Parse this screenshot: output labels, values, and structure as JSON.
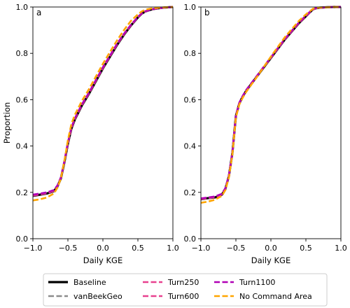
{
  "chart_data": [
    {
      "type": "line",
      "panel_label": "a",
      "xlabel": "Daily KGE",
      "ylabel": "Proportion",
      "xlim": [
        -1.0,
        1.0
      ],
      "ylim": [
        0.0,
        1.0
      ],
      "xticks": [
        "−1.0",
        "−0.5",
        "0.0",
        "0.5",
        "1.0"
      ],
      "yticks": [
        "0.0",
        "0.2",
        "0.4",
        "0.6",
        "0.8",
        "1.0"
      ],
      "grid": false,
      "series": [
        {
          "name": "Baseline",
          "color": "#000000",
          "style": "solid",
          "x": [
            -1.0,
            -0.9,
            -0.8,
            -0.7,
            -0.65,
            -0.6,
            -0.55,
            -0.5,
            -0.45,
            -0.4,
            -0.35,
            -0.3,
            -0.2,
            -0.1,
            0.0,
            0.1,
            0.2,
            0.3,
            0.4,
            0.5,
            0.55,
            0.6,
            0.7,
            0.8,
            0.9,
            1.0
          ],
          "y": [
            0.185,
            0.19,
            0.195,
            0.205,
            0.225,
            0.26,
            0.33,
            0.41,
            0.475,
            0.515,
            0.545,
            0.575,
            0.625,
            0.68,
            0.735,
            0.785,
            0.835,
            0.88,
            0.92,
            0.955,
            0.97,
            0.98,
            0.99,
            0.995,
            0.998,
            1.0
          ]
        },
        {
          "name": "vanBeekGeo",
          "color": "#8c8c8c",
          "style": "dashed",
          "x": [
            -1.0,
            -0.9,
            -0.8,
            -0.7,
            -0.65,
            -0.6,
            -0.55,
            -0.5,
            -0.45,
            -0.4,
            -0.35,
            -0.3,
            -0.2,
            -0.1,
            0.0,
            0.1,
            0.2,
            0.3,
            0.4,
            0.5,
            0.55,
            0.6,
            0.7,
            0.8,
            0.9,
            1.0
          ],
          "y": [
            0.188,
            0.193,
            0.198,
            0.208,
            0.228,
            0.263,
            0.333,
            0.413,
            0.478,
            0.518,
            0.548,
            0.578,
            0.628,
            0.683,
            0.738,
            0.788,
            0.838,
            0.883,
            0.922,
            0.957,
            0.971,
            0.981,
            0.99,
            0.995,
            0.998,
            1.0
          ]
        },
        {
          "name": "Turn250",
          "color": "#e8418f",
          "style": "dashed",
          "x": [
            -1.0,
            -0.9,
            -0.8,
            -0.7,
            -0.65,
            -0.6,
            -0.55,
            -0.5,
            -0.45,
            -0.4,
            -0.35,
            -0.3,
            -0.2,
            -0.1,
            0.0,
            0.1,
            0.2,
            0.3,
            0.4,
            0.5,
            0.55,
            0.6,
            0.7,
            0.8,
            0.9,
            1.0
          ],
          "y": [
            0.186,
            0.191,
            0.196,
            0.206,
            0.227,
            0.262,
            0.332,
            0.412,
            0.477,
            0.517,
            0.547,
            0.577,
            0.627,
            0.682,
            0.737,
            0.787,
            0.837,
            0.882,
            0.921,
            0.956,
            0.97,
            0.98,
            0.99,
            0.995,
            0.998,
            1.0
          ]
        },
        {
          "name": "Turn600",
          "color": "#e8418f",
          "style": "dashed",
          "x": [
            -1.0,
            -0.9,
            -0.8,
            -0.7,
            -0.65,
            -0.6,
            -0.55,
            -0.5,
            -0.45,
            -0.4,
            -0.35,
            -0.3,
            -0.2,
            -0.1,
            0.0,
            0.1,
            0.2,
            0.3,
            0.4,
            0.5,
            0.55,
            0.6,
            0.7,
            0.8,
            0.9,
            1.0
          ],
          "y": [
            0.187,
            0.192,
            0.197,
            0.207,
            0.227,
            0.262,
            0.332,
            0.412,
            0.477,
            0.517,
            0.547,
            0.577,
            0.627,
            0.682,
            0.737,
            0.787,
            0.837,
            0.882,
            0.921,
            0.956,
            0.97,
            0.98,
            0.99,
            0.995,
            0.998,
            1.0
          ]
        },
        {
          "name": "Turn1100",
          "color": "#b000b5",
          "style": "dashed",
          "x": [
            -1.0,
            -0.9,
            -0.8,
            -0.7,
            -0.65,
            -0.6,
            -0.55,
            -0.5,
            -0.45,
            -0.4,
            -0.35,
            -0.3,
            -0.2,
            -0.1,
            0.0,
            0.1,
            0.2,
            0.3,
            0.4,
            0.5,
            0.55,
            0.6,
            0.7,
            0.8,
            0.9,
            1.0
          ],
          "y": [
            0.19,
            0.195,
            0.2,
            0.21,
            0.23,
            0.265,
            0.335,
            0.415,
            0.48,
            0.52,
            0.55,
            0.58,
            0.63,
            0.685,
            0.74,
            0.79,
            0.84,
            0.884,
            0.923,
            0.957,
            0.971,
            0.981,
            0.99,
            0.995,
            0.998,
            1.0
          ]
        },
        {
          "name": "No Command Area",
          "color": "#ffa500",
          "style": "dashed",
          "x": [
            -1.0,
            -0.9,
            -0.8,
            -0.7,
            -0.65,
            -0.6,
            -0.55,
            -0.5,
            -0.45,
            -0.4,
            -0.35,
            -0.3,
            -0.2,
            -0.1,
            0.0,
            0.1,
            0.2,
            0.3,
            0.4,
            0.5,
            0.55,
            0.6,
            0.7,
            0.8,
            0.9,
            1.0
          ],
          "y": [
            0.165,
            0.17,
            0.178,
            0.195,
            0.22,
            0.26,
            0.335,
            0.425,
            0.495,
            0.535,
            0.565,
            0.595,
            0.645,
            0.7,
            0.755,
            0.805,
            0.855,
            0.9,
            0.94,
            0.968,
            0.98,
            0.988,
            0.994,
            0.997,
            0.999,
            1.0
          ]
        }
      ]
    },
    {
      "type": "line",
      "panel_label": "b",
      "xlabel": "Daily KGE",
      "ylabel": "",
      "xlim": [
        -1.0,
        1.0
      ],
      "ylim": [
        0.0,
        1.0
      ],
      "xticks": [
        "−1.0",
        "−0.5",
        "0.0",
        "0.5",
        "1.0"
      ],
      "yticks": [
        "0.0",
        "0.2",
        "0.4",
        "0.6",
        "0.8",
        "1.0"
      ],
      "grid": false,
      "series": [
        {
          "name": "Baseline",
          "color": "#000000",
          "style": "solid",
          "x": [
            -1.0,
            -0.9,
            -0.8,
            -0.7,
            -0.65,
            -0.6,
            -0.55,
            -0.5,
            -0.45,
            -0.4,
            -0.35,
            -0.3,
            -0.2,
            -0.1,
            0.0,
            0.1,
            0.2,
            0.3,
            0.4,
            0.5,
            0.55,
            0.6,
            0.65,
            0.7,
            0.8,
            0.9,
            1.0
          ],
          "y": [
            0.17,
            0.175,
            0.178,
            0.19,
            0.215,
            0.27,
            0.37,
            0.53,
            0.585,
            0.615,
            0.64,
            0.66,
            0.7,
            0.74,
            0.78,
            0.82,
            0.86,
            0.895,
            0.93,
            0.96,
            0.975,
            0.99,
            0.995,
            0.997,
            0.999,
            1.0,
            1.0
          ]
        },
        {
          "name": "vanBeekGeo",
          "color": "#8c8c8c",
          "style": "dashed",
          "x": [
            -1.0,
            -0.9,
            -0.8,
            -0.7,
            -0.65,
            -0.6,
            -0.55,
            -0.5,
            -0.45,
            -0.4,
            -0.35,
            -0.3,
            -0.2,
            -0.1,
            0.0,
            0.1,
            0.2,
            0.3,
            0.4,
            0.5,
            0.55,
            0.6,
            0.65,
            0.7,
            0.8,
            0.9,
            1.0
          ],
          "y": [
            0.172,
            0.176,
            0.18,
            0.192,
            0.217,
            0.272,
            0.372,
            0.532,
            0.587,
            0.617,
            0.642,
            0.662,
            0.702,
            0.742,
            0.782,
            0.822,
            0.862,
            0.897,
            0.932,
            0.962,
            0.976,
            0.99,
            0.995,
            0.997,
            0.999,
            1.0,
            1.0
          ]
        },
        {
          "name": "Turn250",
          "color": "#e8418f",
          "style": "dashed",
          "x": [
            -1.0,
            -0.9,
            -0.8,
            -0.7,
            -0.65,
            -0.6,
            -0.55,
            -0.5,
            -0.45,
            -0.4,
            -0.35,
            -0.3,
            -0.2,
            -0.1,
            0.0,
            0.1,
            0.2,
            0.3,
            0.4,
            0.5,
            0.55,
            0.6,
            0.65,
            0.7,
            0.8,
            0.9,
            1.0
          ],
          "y": [
            0.171,
            0.175,
            0.179,
            0.191,
            0.216,
            0.271,
            0.371,
            0.531,
            0.586,
            0.616,
            0.641,
            0.661,
            0.701,
            0.741,
            0.781,
            0.821,
            0.861,
            0.896,
            0.931,
            0.961,
            0.975,
            0.99,
            0.995,
            0.997,
            0.999,
            1.0,
            1.0
          ]
        },
        {
          "name": "Turn600",
          "color": "#e8418f",
          "style": "dashed",
          "x": [
            -1.0,
            -0.9,
            -0.8,
            -0.7,
            -0.65,
            -0.6,
            -0.55,
            -0.5,
            -0.45,
            -0.4,
            -0.35,
            -0.3,
            -0.2,
            -0.1,
            0.0,
            0.1,
            0.2,
            0.3,
            0.4,
            0.5,
            0.55,
            0.6,
            0.65,
            0.7,
            0.8,
            0.9,
            1.0
          ],
          "y": [
            0.171,
            0.176,
            0.179,
            0.191,
            0.216,
            0.271,
            0.371,
            0.531,
            0.586,
            0.616,
            0.641,
            0.661,
            0.701,
            0.741,
            0.781,
            0.821,
            0.861,
            0.896,
            0.931,
            0.961,
            0.975,
            0.99,
            0.995,
            0.997,
            0.999,
            1.0,
            1.0
          ]
        },
        {
          "name": "Turn1100",
          "color": "#b000b5",
          "style": "dashed",
          "x": [
            -1.0,
            -0.9,
            -0.8,
            -0.7,
            -0.65,
            -0.6,
            -0.55,
            -0.5,
            -0.45,
            -0.4,
            -0.35,
            -0.3,
            -0.2,
            -0.1,
            0.0,
            0.1,
            0.2,
            0.3,
            0.4,
            0.5,
            0.55,
            0.6,
            0.65,
            0.7,
            0.8,
            0.9,
            1.0
          ],
          "y": [
            0.174,
            0.178,
            0.182,
            0.194,
            0.219,
            0.274,
            0.374,
            0.534,
            0.588,
            0.618,
            0.643,
            0.663,
            0.703,
            0.743,
            0.783,
            0.823,
            0.863,
            0.898,
            0.933,
            0.963,
            0.977,
            0.99,
            0.995,
            0.997,
            0.999,
            1.0,
            1.0
          ]
        },
        {
          "name": "No Command Area",
          "color": "#ffa500",
          "style": "dashed",
          "x": [
            -1.0,
            -0.9,
            -0.8,
            -0.7,
            -0.65,
            -0.6,
            -0.55,
            -0.5,
            -0.45,
            -0.4,
            -0.35,
            -0.3,
            -0.2,
            -0.1,
            0.0,
            0.1,
            0.2,
            0.3,
            0.4,
            0.5,
            0.55,
            0.6,
            0.65,
            0.7,
            0.8,
            0.9,
            1.0
          ],
          "y": [
            0.155,
            0.16,
            0.168,
            0.185,
            0.21,
            0.265,
            0.365,
            0.525,
            0.58,
            0.61,
            0.635,
            0.656,
            0.698,
            0.742,
            0.786,
            0.828,
            0.87,
            0.905,
            0.94,
            0.968,
            0.98,
            0.992,
            0.996,
            0.998,
            0.999,
            1.0,
            1.0
          ]
        }
      ]
    }
  ],
  "legend": {
    "placement": "bottom-center",
    "entries": [
      {
        "label": "Baseline",
        "color": "#000000",
        "style": "solid"
      },
      {
        "label": "vanBeekGeo",
        "color": "#8c8c8c",
        "style": "dashed"
      },
      {
        "label": "Turn250",
        "color": "#e8418f",
        "style": "dashed"
      },
      {
        "label": "Turn600",
        "color": "#e8418f",
        "style": "dashed"
      },
      {
        "label": "Turn1100",
        "color": "#b000b5",
        "style": "dashed"
      },
      {
        "label": "No Command Area",
        "color": "#ffa500",
        "style": "dashed"
      }
    ]
  }
}
